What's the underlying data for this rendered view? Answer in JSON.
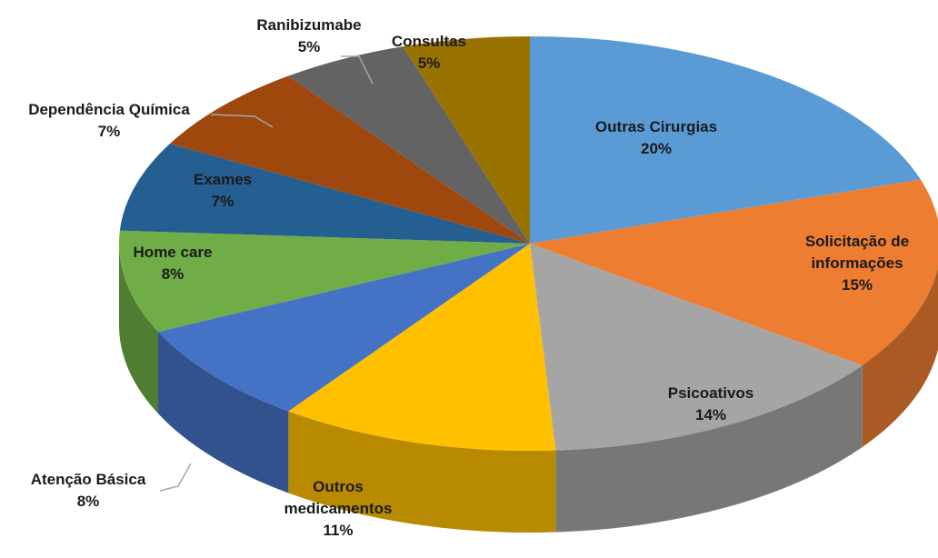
{
  "chart_data": {
    "type": "pie3d",
    "categories": [
      "Outras Cirurgias",
      "Solicitação de informações",
      "Psicoativos",
      "Outros medicamentos",
      "Atenção Básica",
      "Home care",
      "Exames",
      "Dependência Química",
      "Ranibizumabe",
      "Consultas"
    ],
    "values": [
      20,
      15,
      14,
      11,
      8,
      8,
      7,
      7,
      5,
      5
    ],
    "value_labels": [
      "20%",
      "15%",
      "14%",
      "11%",
      "8%",
      "8%",
      "7%",
      "7%",
      "5%",
      "5%"
    ],
    "colors": [
      "#5b9bd5",
      "#ed7d31",
      "#a5a5a5",
      "#ffc000",
      "#4472c4",
      "#70ad47",
      "#255e91",
      "#9e480e",
      "#636363",
      "#997300"
    ]
  }
}
